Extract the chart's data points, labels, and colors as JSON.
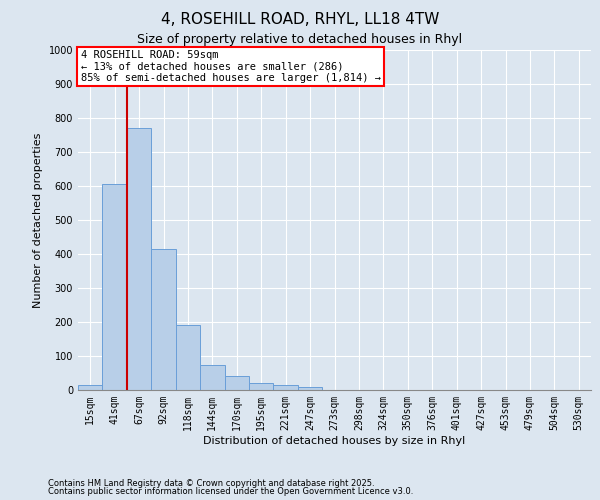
{
  "title_line1": "4, ROSEHILL ROAD, RHYL, LL18 4TW",
  "title_line2": "Size of property relative to detached houses in Rhyl",
  "xlabel": "Distribution of detached houses by size in Rhyl",
  "ylabel": "Number of detached properties",
  "bar_labels": [
    "15sqm",
    "41sqm",
    "67sqm",
    "92sqm",
    "118sqm",
    "144sqm",
    "170sqm",
    "195sqm",
    "221sqm",
    "247sqm",
    "273sqm",
    "298sqm",
    "324sqm",
    "350sqm",
    "376sqm",
    "401sqm",
    "427sqm",
    "453sqm",
    "479sqm",
    "504sqm",
    "530sqm"
  ],
  "bar_values": [
    15,
    605,
    770,
    415,
    190,
    75,
    40,
    20,
    15,
    8,
    0,
    0,
    0,
    0,
    0,
    0,
    0,
    0,
    0,
    0,
    0
  ],
  "bar_color": "#b8cfe8",
  "bar_edge_color": "#6a9fd8",
  "vline_x": 1.5,
  "vline_color": "#cc0000",
  "ylim": [
    0,
    1000
  ],
  "yticks": [
    0,
    100,
    200,
    300,
    400,
    500,
    600,
    700,
    800,
    900,
    1000
  ],
  "annotation_box_text": "4 ROSEHILL ROAD: 59sqm\n← 13% of detached houses are smaller (286)\n85% of semi-detached houses are larger (1,814) →",
  "bg_color": "#dce6f0",
  "plot_bg_color": "#dce6f0",
  "footer_line1": "Contains HM Land Registry data © Crown copyright and database right 2025.",
  "footer_line2": "Contains public sector information licensed under the Open Government Licence v3.0.",
  "grid_color": "#ffffff",
  "title_fontsize": 11,
  "subtitle_fontsize": 9,
  "annotation_fontsize": 7.5,
  "tick_fontsize": 7,
  "label_fontsize": 8,
  "footer_fontsize": 6
}
